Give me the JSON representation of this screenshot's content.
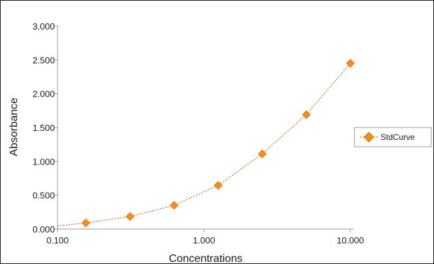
{
  "chart_data": {
    "type": "scatter",
    "title": "",
    "xlabel": "Concentrations",
    "ylabel": "Absorbance",
    "x_scale": "log",
    "xlim": [
      0.1,
      10
    ],
    "ylim": [
      0,
      3
    ],
    "x_ticks": [
      0.1,
      1,
      10
    ],
    "x_tick_labels": [
      "0.100",
      "1.000",
      "10.000"
    ],
    "y_ticks": [
      0,
      0.5,
      1,
      1.5,
      2,
      2.5,
      3
    ],
    "y_tick_labels": [
      "0.000",
      "0.500",
      "1.000",
      "1.500",
      "2.000",
      "2.500",
      "3.000"
    ],
    "grid": false,
    "legend_position": "right",
    "series": [
      {
        "name": "StdCurve",
        "color": "#f28c1e",
        "marker": "diamond",
        "x": [
          0.156,
          0.3125,
          0.625,
          1.25,
          2.5,
          5,
          10
        ],
        "y": [
          0.09,
          0.185,
          0.35,
          0.645,
          1.11,
          1.69,
          2.45
        ]
      }
    ],
    "trendline": {
      "style": "dotted",
      "color": "#b05a00",
      "x": [
        0.1,
        0.156,
        0.3125,
        0.625,
        1.25,
        2.5,
        5,
        10
      ],
      "y": [
        0.045,
        0.09,
        0.185,
        0.35,
        0.645,
        1.11,
        1.69,
        2.45
      ]
    }
  }
}
